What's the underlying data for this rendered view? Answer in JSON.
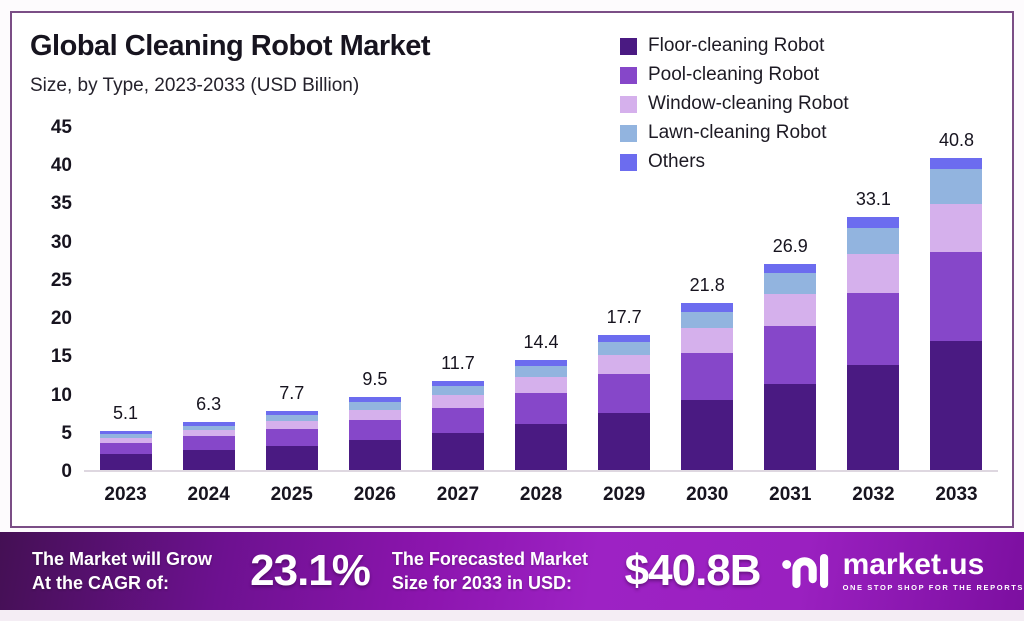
{
  "header": {
    "title": "Global Cleaning Robot Market",
    "subtitle": "Size, by Type, 2023-2033 (USD Billion)"
  },
  "chart_data": {
    "type": "bar",
    "stacked": true,
    "title": "Global Cleaning Robot Market Size, by Type, 2023-2033 (USD Billion)",
    "categories": [
      "2023",
      "2024",
      "2025",
      "2026",
      "2027",
      "2028",
      "2029",
      "2030",
      "2031",
      "2032",
      "2033"
    ],
    "series": [
      {
        "name": "Floor-cleaning Robot",
        "color": "#4a1a82",
        "values": [
          2.1,
          2.6,
          3.2,
          3.9,
          4.8,
          6.0,
          7.5,
          9.1,
          11.2,
          13.7,
          16.9
        ]
      },
      {
        "name": "Pool-cleaning Robot",
        "color": "#8647c9",
        "values": [
          1.5,
          1.8,
          2.2,
          2.7,
          3.3,
          4.1,
          5.0,
          6.2,
          7.6,
          9.4,
          11.6
        ]
      },
      {
        "name": "Window-cleaning Robot",
        "color": "#d5b0ec",
        "values": [
          0.6,
          0.8,
          1.0,
          1.3,
          1.7,
          2.1,
          2.6,
          3.3,
          4.2,
          5.1,
          6.3
        ]
      },
      {
        "name": "Lawn-cleaning Robot",
        "color": "#92b4df",
        "values": [
          0.5,
          0.6,
          0.8,
          1.0,
          1.2,
          1.4,
          1.6,
          2.1,
          2.8,
          3.5,
          4.6
        ]
      },
      {
        "name": "Others",
        "color": "#6c6cef",
        "values": [
          0.4,
          0.5,
          0.5,
          0.6,
          0.7,
          0.8,
          1.0,
          1.1,
          1.1,
          1.4,
          1.4
        ]
      }
    ],
    "totals": [
      "5.1",
      "6.3",
      "7.7",
      "9.5",
      "11.7",
      "14.4",
      "17.7",
      "21.8",
      "26.9",
      "33.1",
      "40.8"
    ],
    "xlabel": "",
    "ylabel": "",
    "ylim": [
      0,
      45
    ],
    "yticks": [
      0,
      5,
      10,
      15,
      20,
      25,
      30,
      35,
      40,
      45
    ],
    "grid": false,
    "legend_position": "top-right"
  },
  "footer": {
    "cagr_line1": "The Market will Grow",
    "cagr_line2": "At the CAGR of:",
    "cagr_value": "23.1%",
    "forecast_line1": "The Forecasted Market",
    "forecast_line2": "Size for 2033 in USD:",
    "forecast_value": "$40.8B",
    "brand_name": "market.us",
    "brand_tagline": "ONE STOP SHOP FOR THE REPORTS"
  },
  "colors": {
    "card_border": "#7b4e86",
    "banner_gradient_start": "#441054",
    "banner_gradient_mid": "#9d22c4",
    "banner_gradient_end": "#7c0fa0",
    "text_dark": "#17141f",
    "text_light": "#ffffff"
  }
}
